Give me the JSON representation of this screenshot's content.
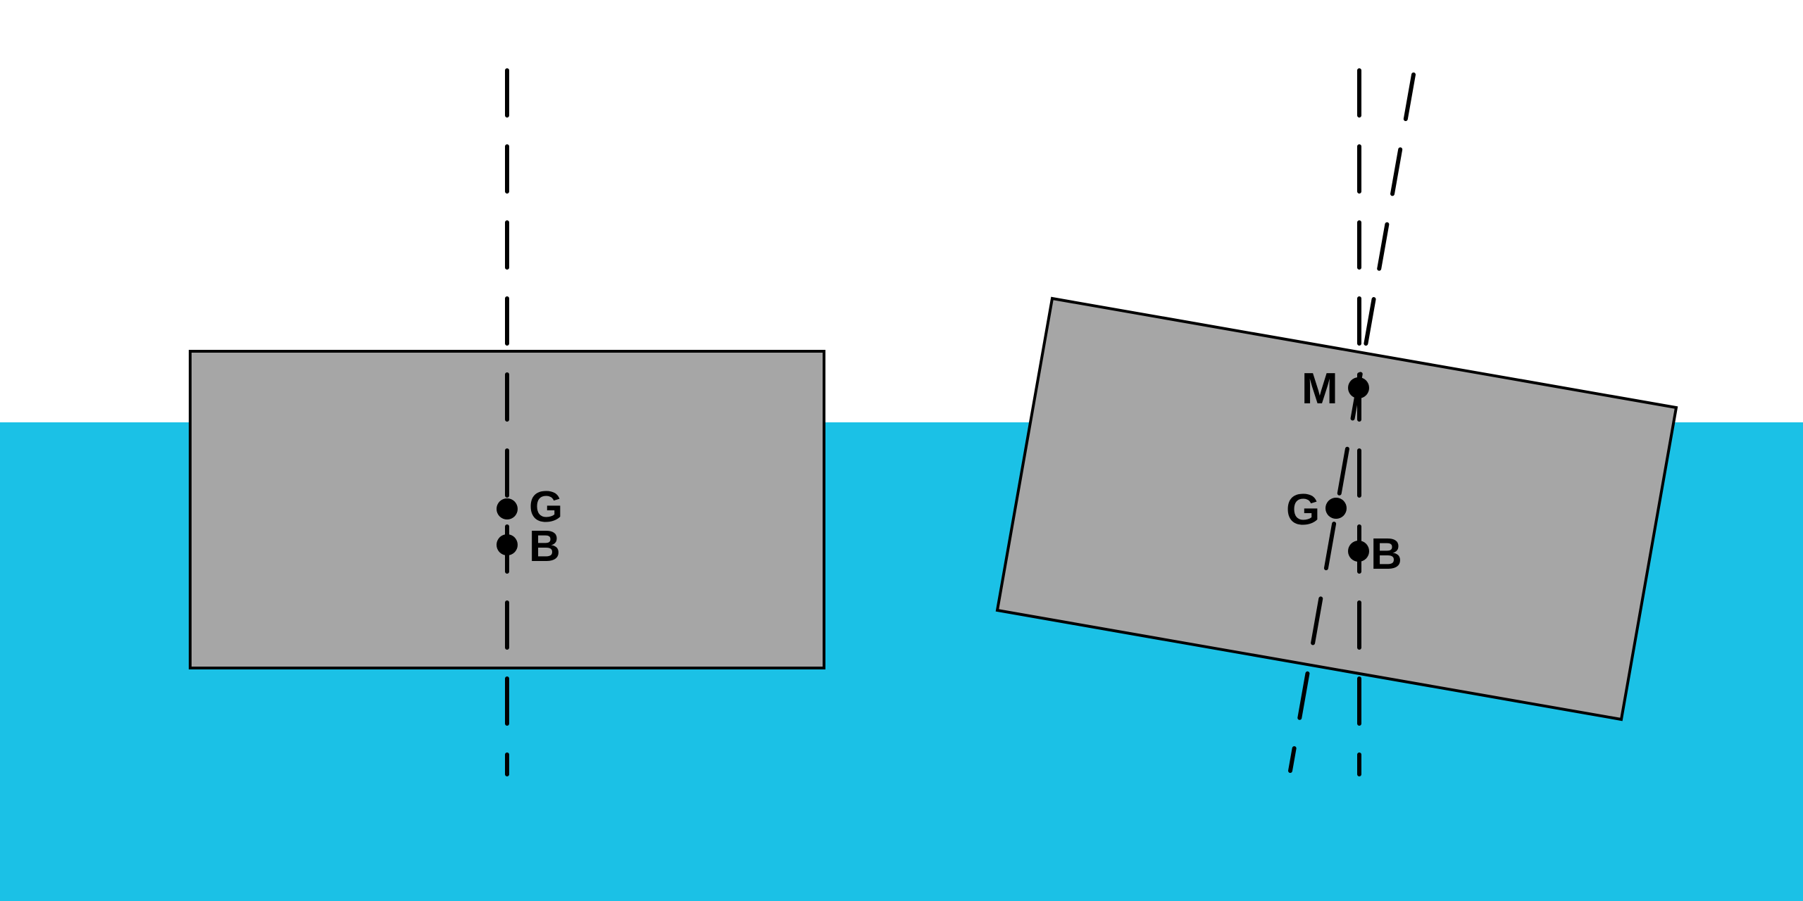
{
  "colors": {
    "sky": "#ffffff",
    "water": "#1bc1e6",
    "body": "#a6a6a6",
    "outline": "#000000"
  },
  "upright": {
    "labels": {
      "g": "G",
      "b": "B"
    }
  },
  "heeled": {
    "labels": {
      "m": "M",
      "g": "G",
      "b": "B"
    }
  }
}
